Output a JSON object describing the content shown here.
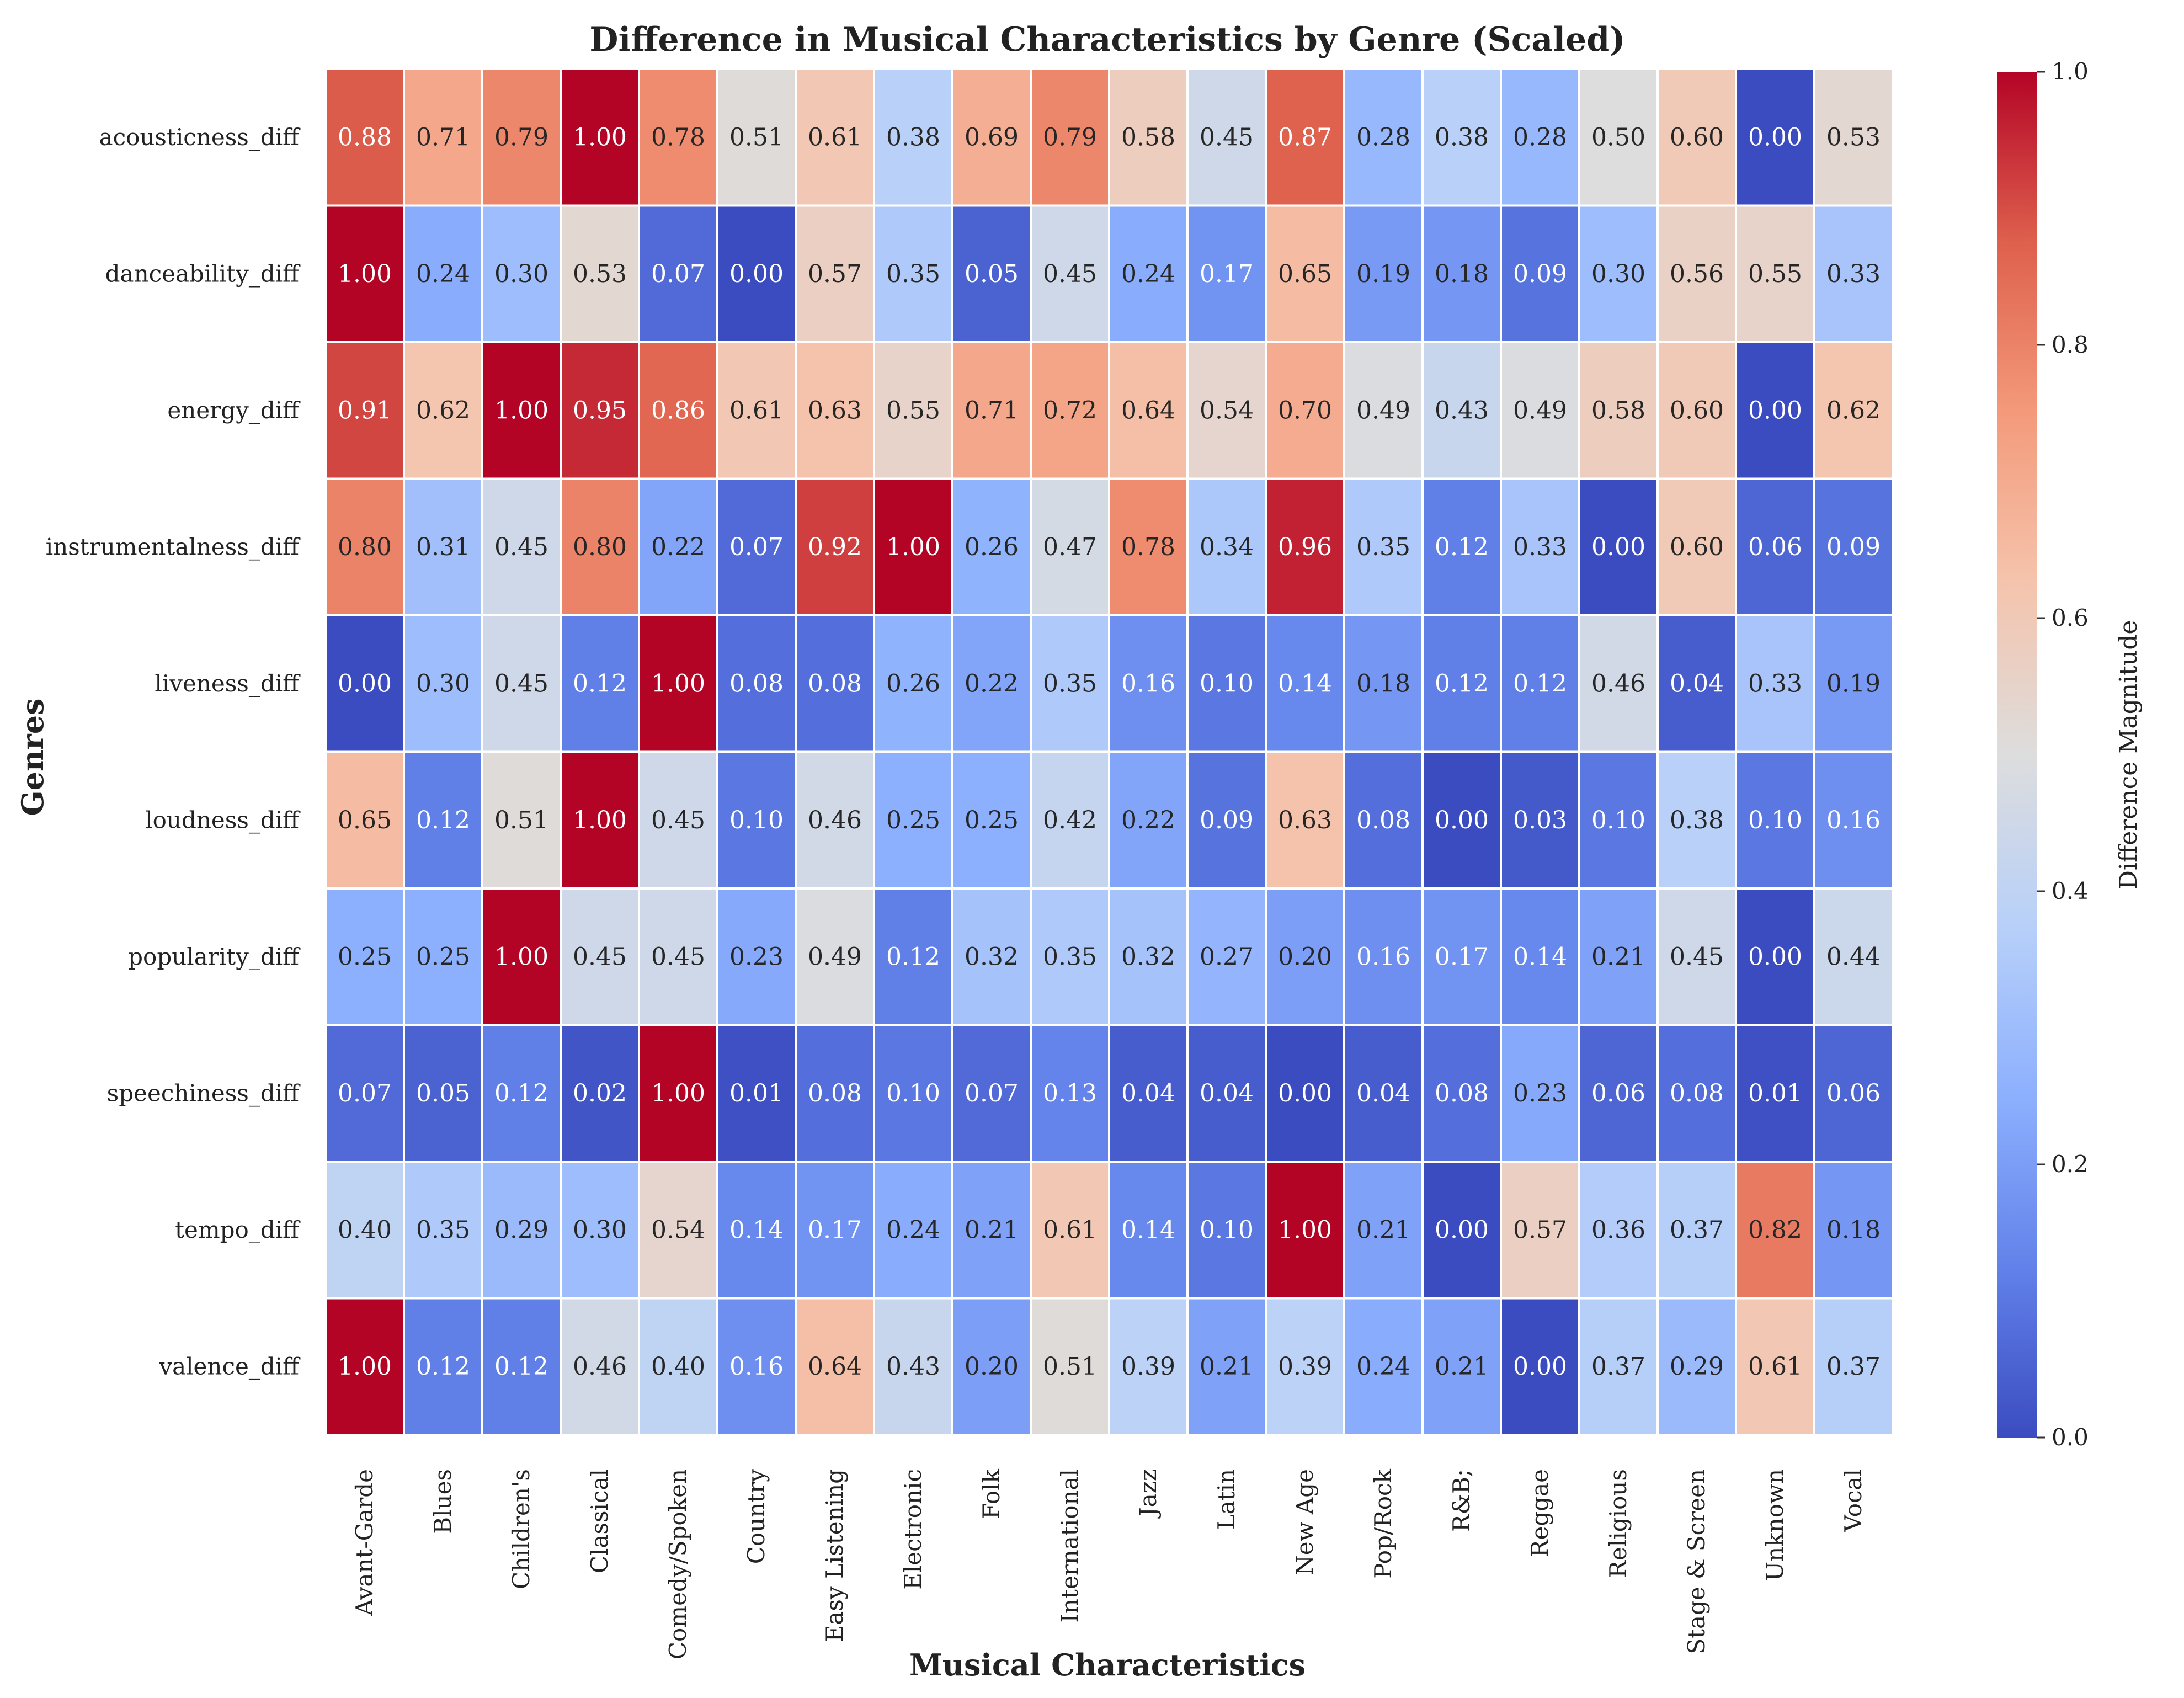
{
  "chart_data": {
    "type": "heatmap",
    "title": "Difference in Musical Characteristics by Genre (Scaled)",
    "xlabel": "Musical Characteristics",
    "ylabel": "Genres",
    "colorbar_label": "Difference Magnitude",
    "colormap": "coolwarm",
    "vmin": 0.0,
    "vmax": 1.0,
    "colorbar_ticks": [
      "0.0",
      "0.2",
      "0.4",
      "0.6",
      "0.8",
      "1.0"
    ],
    "colorbar_tick_values": [
      0.0,
      0.2,
      0.4,
      0.6,
      0.8,
      1.0
    ],
    "columns": [
      "Avant-Garde",
      "Blues",
      "Children's",
      "Classical",
      "Comedy/Spoken",
      "Country",
      "Easy Listening",
      "Electronic",
      "Folk",
      "International",
      "Jazz",
      "Latin",
      "New Age",
      "Pop/Rock",
      "R&B;",
      "Reggae",
      "Religious",
      "Stage & Screen",
      "Unknown",
      "Vocal"
    ],
    "rows": [
      "acousticness_diff",
      "danceability_diff",
      "energy_diff",
      "instrumentalness_diff",
      "liveness_diff",
      "loudness_diff",
      "popularity_diff",
      "speechiness_diff",
      "tempo_diff",
      "valence_diff"
    ],
    "values": [
      [
        0.88,
        0.71,
        0.79,
        1.0,
        0.78,
        0.51,
        0.61,
        0.38,
        0.69,
        0.79,
        0.58,
        0.45,
        0.87,
        0.28,
        0.38,
        0.28,
        0.5,
        0.6,
        0.0,
        0.53
      ],
      [
        1.0,
        0.24,
        0.3,
        0.53,
        0.07,
        0.0,
        0.57,
        0.35,
        0.05,
        0.45,
        0.24,
        0.17,
        0.65,
        0.19,
        0.18,
        0.09,
        0.3,
        0.56,
        0.55,
        0.33
      ],
      [
        0.91,
        0.62,
        1.0,
        0.95,
        0.86,
        0.61,
        0.63,
        0.55,
        0.71,
        0.72,
        0.64,
        0.54,
        0.7,
        0.49,
        0.43,
        0.49,
        0.58,
        0.6,
        0.0,
        0.62
      ],
      [
        0.8,
        0.31,
        0.45,
        0.8,
        0.22,
        0.07,
        0.92,
        1.0,
        0.26,
        0.47,
        0.78,
        0.34,
        0.96,
        0.35,
        0.12,
        0.33,
        0.0,
        0.6,
        0.06,
        0.09
      ],
      [
        0.0,
        0.3,
        0.45,
        0.12,
        1.0,
        0.08,
        0.08,
        0.26,
        0.22,
        0.35,
        0.16,
        0.1,
        0.14,
        0.18,
        0.12,
        0.12,
        0.46,
        0.04,
        0.33,
        0.19
      ],
      [
        0.65,
        0.12,
        0.51,
        1.0,
        0.45,
        0.1,
        0.46,
        0.25,
        0.25,
        0.42,
        0.22,
        0.09,
        0.63,
        0.08,
        0.0,
        0.03,
        0.1,
        0.38,
        0.1,
        0.16
      ],
      [
        0.25,
        0.25,
        1.0,
        0.45,
        0.45,
        0.23,
        0.49,
        0.12,
        0.32,
        0.35,
        0.32,
        0.27,
        0.2,
        0.16,
        0.17,
        0.14,
        0.21,
        0.45,
        0.0,
        0.44
      ],
      [
        0.07,
        0.05,
        0.12,
        0.02,
        1.0,
        0.01,
        0.08,
        0.1,
        0.07,
        0.13,
        0.04,
        0.04,
        0.0,
        0.04,
        0.08,
        0.23,
        0.06,
        0.08,
        0.01,
        0.06
      ],
      [
        0.4,
        0.35,
        0.29,
        0.3,
        0.54,
        0.14,
        0.17,
        0.24,
        0.21,
        0.61,
        0.14,
        0.1,
        1.0,
        0.21,
        0.0,
        0.57,
        0.36,
        0.37,
        0.82,
        0.18
      ],
      [
        1.0,
        0.12,
        0.12,
        0.46,
        0.4,
        0.16,
        0.64,
        0.43,
        0.2,
        0.51,
        0.39,
        0.21,
        0.39,
        0.24,
        0.21,
        0.0,
        0.37,
        0.29,
        0.61,
        0.37
      ]
    ],
    "cell_label_format": "2-decimal"
  }
}
